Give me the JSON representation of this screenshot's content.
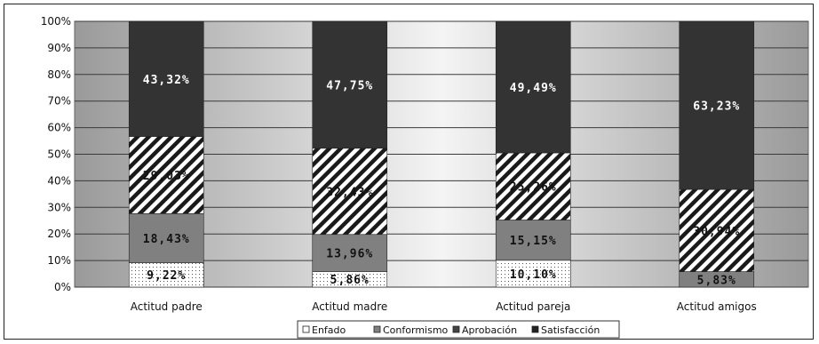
{
  "chart_data": {
    "type": "bar",
    "stacked": true,
    "percent": true,
    "categories": [
      "Actitud padre",
      "Actitud madre",
      "Actitud pareja",
      "Actitud amigos"
    ],
    "series": [
      {
        "name": "Enfado",
        "values": [
          9.22,
          5.86,
          10.1,
          0
        ],
        "labels": [
          "9,22%",
          "5,86%",
          "10,10%",
          ""
        ]
      },
      {
        "name": "Conformismo",
        "values": [
          18.43,
          13.96,
          15.15,
          5.83
        ],
        "labels": [
          "18,43%",
          "13,96%",
          "15,15%",
          "5,83%"
        ]
      },
      {
        "name": "Aprobación",
        "values": [
          29.03,
          32.43,
          25.26,
          30.94
        ],
        "labels": [
          "29,03%",
          "32,43%",
          "25,26%",
          "30,94%"
        ]
      },
      {
        "name": "Satisfacción",
        "values": [
          43.32,
          47.75,
          49.49,
          63.23
        ],
        "labels": [
          "43,32%",
          "47,75%",
          "49,49%",
          "63,23%"
        ]
      }
    ],
    "yticks": [
      "0%",
      "10%",
      "20%",
      "30%",
      "40%",
      "50%",
      "60%",
      "70%",
      "80%",
      "90%",
      "100%"
    ],
    "ylim": [
      0,
      100
    ],
    "grid": true,
    "legend_position": "bottom",
    "colors": {
      "Enfado": "#ffffff",
      "Conformismo": "#808080",
      "Aprobación": "#ffffff",
      "Satisfacción": "#333333"
    }
  }
}
